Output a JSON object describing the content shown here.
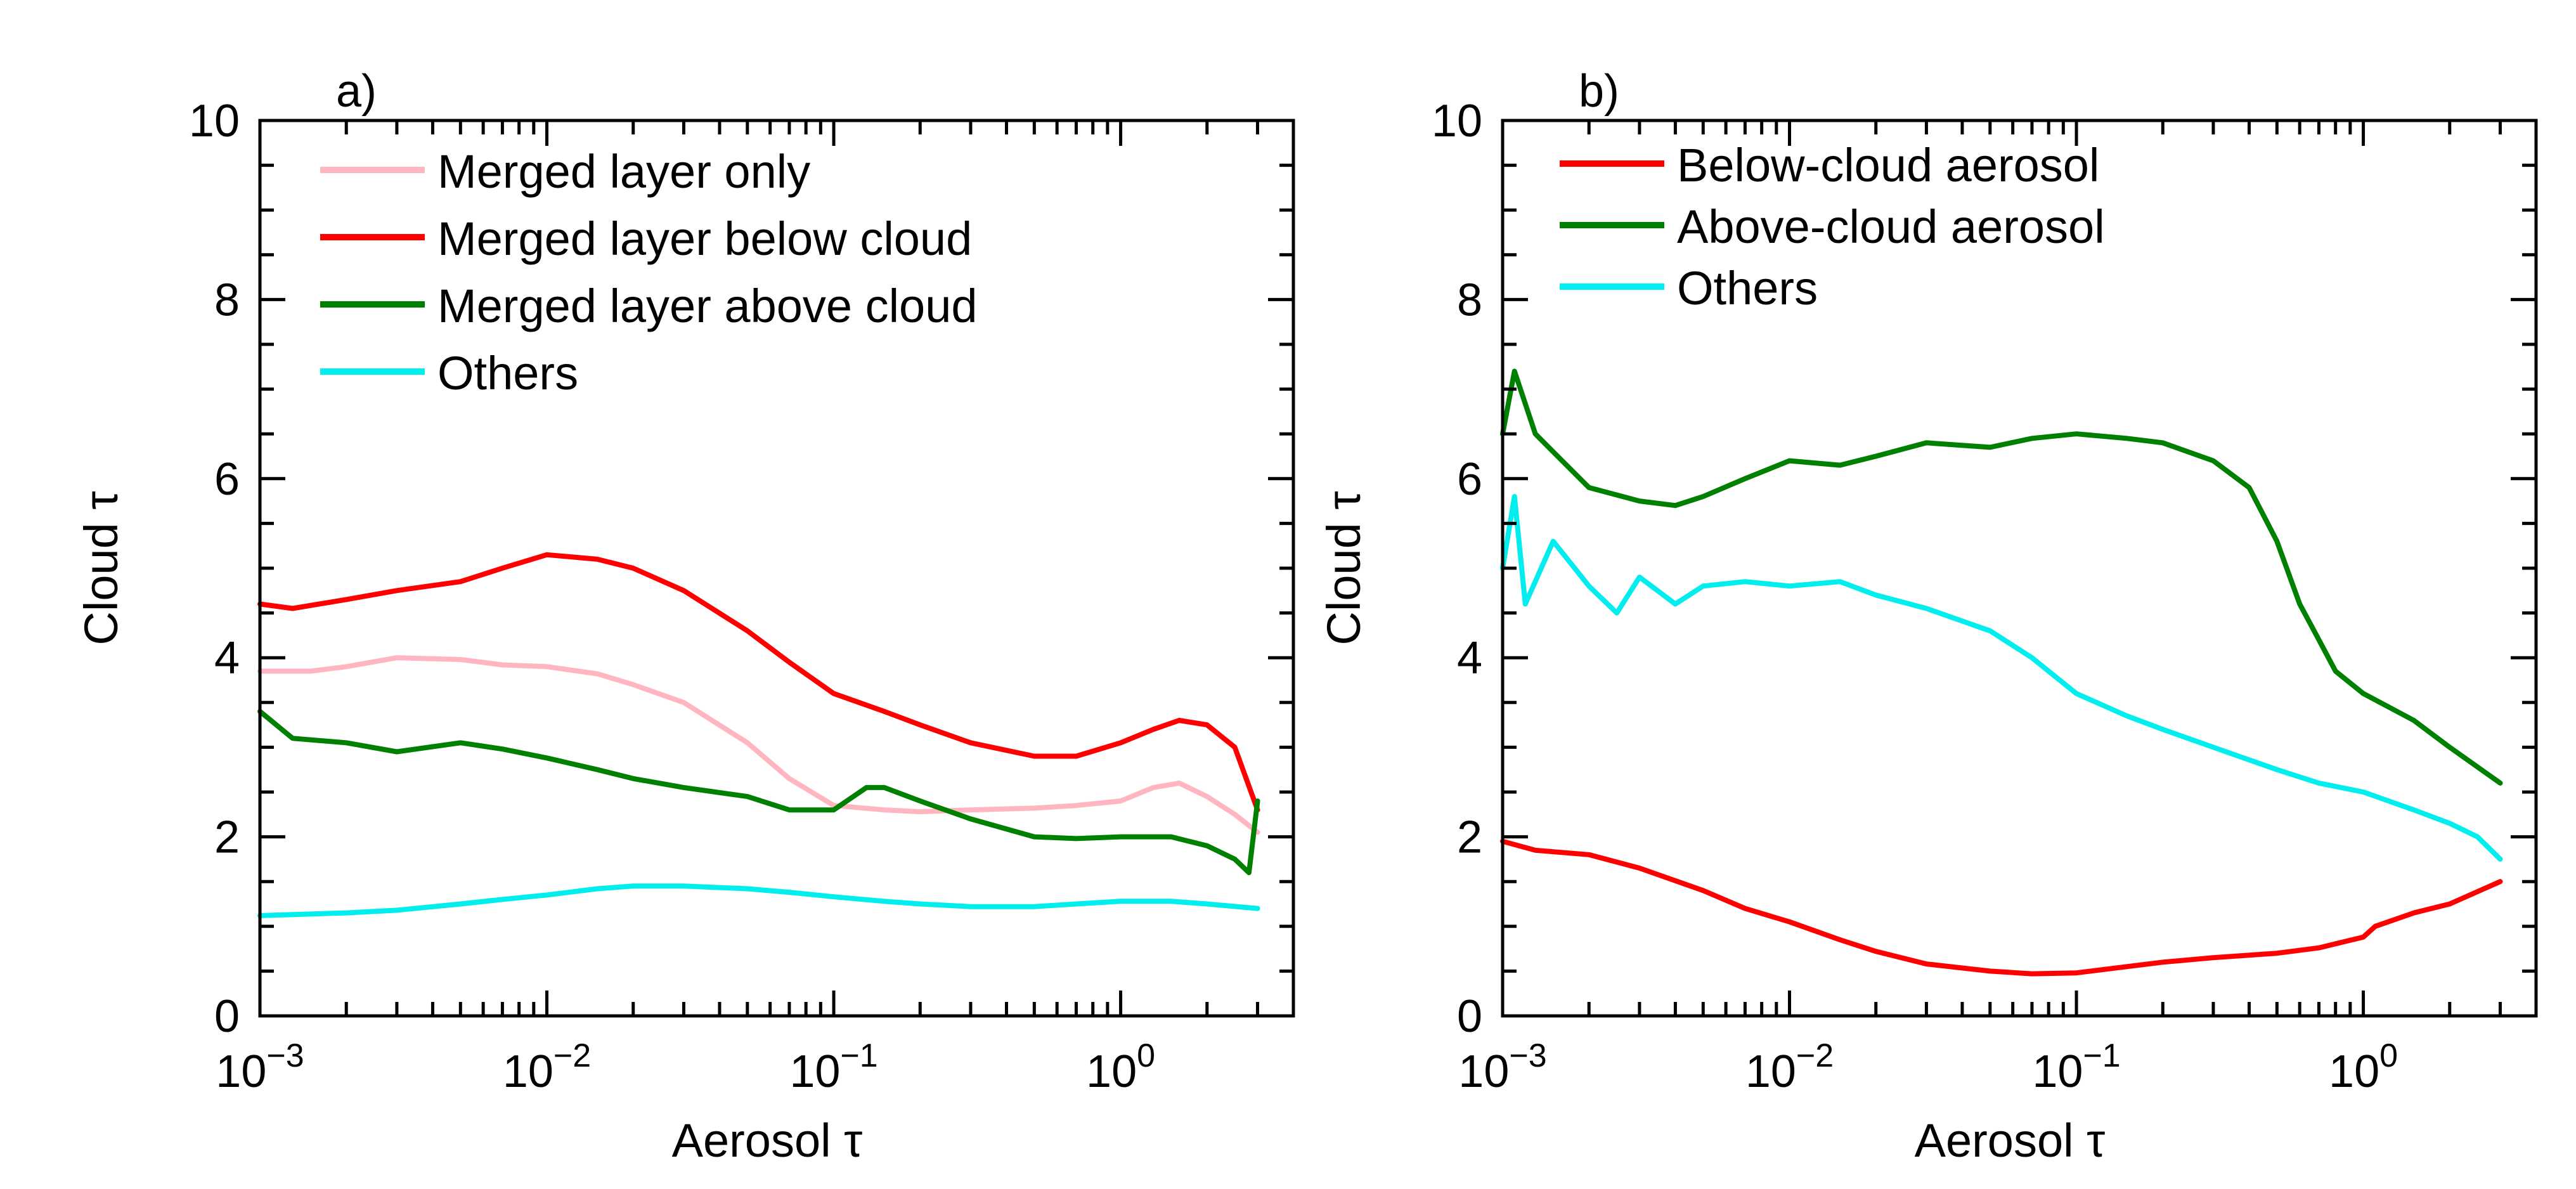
{
  "chart_data": [
    {
      "type": "line",
      "panel_label": "a)",
      "xlabel": "Aerosol τ",
      "ylabel": "Cloud τ",
      "xscale": "log",
      "xlim": [
        0.001,
        4
      ],
      "ylim": [
        0,
        10
      ],
      "xticks": [
        {
          "value": 0.001,
          "base": "10",
          "exp": "−3"
        },
        {
          "value": 0.01,
          "base": "10",
          "exp": "−2"
        },
        {
          "value": 0.1,
          "base": "10",
          "exp": "−1"
        },
        {
          "value": 1,
          "base": "10",
          "exp": "0"
        }
      ],
      "yticks": [
        {
          "value": 0,
          "label": "0"
        },
        {
          "value": 2,
          "label": "2"
        },
        {
          "value": 4,
          "label": "4"
        },
        {
          "value": 6,
          "label": "6"
        },
        {
          "value": 8,
          "label": "8"
        },
        {
          "value": 10,
          "label": "10"
        }
      ],
      "legend_position": "top-left",
      "grid": false,
      "series": [
        {
          "name": "Merged layer only",
          "color": "#ffb6c1",
          "x": [
            0.001,
            0.0015,
            0.002,
            0.003,
            0.005,
            0.007,
            0.01,
            0.015,
            0.02,
            0.03,
            0.05,
            0.07,
            0.1,
            0.15,
            0.2,
            0.3,
            0.5,
            0.7,
            1.0,
            1.3,
            1.6,
            2.0,
            2.5,
            3.0
          ],
          "y": [
            3.85,
            3.85,
            3.9,
            4.0,
            3.98,
            3.92,
            3.9,
            3.82,
            3.7,
            3.5,
            3.05,
            2.65,
            2.35,
            2.3,
            2.28,
            2.3,
            2.32,
            2.35,
            2.4,
            2.55,
            2.6,
            2.45,
            2.25,
            2.05
          ]
        },
        {
          "name": "Merged layer below cloud",
          "color": "#ff0000",
          "x": [
            0.001,
            0.0013,
            0.002,
            0.003,
            0.005,
            0.007,
            0.01,
            0.015,
            0.02,
            0.03,
            0.05,
            0.07,
            0.1,
            0.15,
            0.2,
            0.3,
            0.5,
            0.7,
            1.0,
            1.3,
            1.6,
            2.0,
            2.5,
            3.0
          ],
          "y": [
            4.6,
            4.55,
            4.65,
            4.75,
            4.85,
            5.0,
            5.15,
            5.1,
            5.0,
            4.75,
            4.3,
            3.95,
            3.6,
            3.4,
            3.25,
            3.05,
            2.9,
            2.9,
            3.05,
            3.2,
            3.3,
            3.25,
            3.0,
            2.3
          ]
        },
        {
          "name": "Merged layer above cloud",
          "color": "#008000",
          "x": [
            0.001,
            0.0013,
            0.002,
            0.003,
            0.005,
            0.007,
            0.01,
            0.015,
            0.02,
            0.03,
            0.05,
            0.07,
            0.1,
            0.13,
            0.15,
            0.2,
            0.3,
            0.5,
            0.7,
            1.0,
            1.5,
            2.0,
            2.5,
            2.8,
            3.0
          ],
          "y": [
            3.4,
            3.1,
            3.05,
            2.95,
            3.05,
            2.98,
            2.88,
            2.75,
            2.65,
            2.55,
            2.45,
            2.3,
            2.3,
            2.55,
            2.55,
            2.4,
            2.2,
            2.0,
            1.98,
            2.0,
            2.0,
            1.9,
            1.75,
            1.6,
            2.4
          ]
        },
        {
          "name": "Others",
          "color": "#00eeee",
          "x": [
            0.001,
            0.002,
            0.003,
            0.005,
            0.007,
            0.01,
            0.015,
            0.02,
            0.03,
            0.05,
            0.07,
            0.1,
            0.15,
            0.2,
            0.3,
            0.5,
            0.7,
            1.0,
            1.5,
            2.0,
            3.0
          ],
          "y": [
            1.12,
            1.15,
            1.18,
            1.25,
            1.3,
            1.35,
            1.42,
            1.45,
            1.45,
            1.42,
            1.38,
            1.33,
            1.28,
            1.25,
            1.22,
            1.22,
            1.25,
            1.28,
            1.28,
            1.25,
            1.2
          ]
        }
      ]
    },
    {
      "type": "line",
      "panel_label": "b)",
      "xlabel": "Aerosol τ",
      "ylabel": "Cloud τ",
      "xscale": "log",
      "xlim": [
        0.001,
        4
      ],
      "ylim": [
        0,
        10
      ],
      "xticks": [
        {
          "value": 0.001,
          "base": "10",
          "exp": "−3"
        },
        {
          "value": 0.01,
          "base": "10",
          "exp": "−2"
        },
        {
          "value": 0.1,
          "base": "10",
          "exp": "−1"
        },
        {
          "value": 1,
          "base": "10",
          "exp": "0"
        }
      ],
      "yticks": [
        {
          "value": 0,
          "label": "0"
        },
        {
          "value": 2,
          "label": "2"
        },
        {
          "value": 4,
          "label": "4"
        },
        {
          "value": 6,
          "label": "6"
        },
        {
          "value": 8,
          "label": "8"
        },
        {
          "value": 10,
          "label": "10"
        }
      ],
      "legend_position": "top-left",
      "grid": false,
      "series": [
        {
          "name": "Below-cloud aerosol",
          "color": "#ff0000",
          "x": [
            0.001,
            0.0013,
            0.002,
            0.003,
            0.005,
            0.007,
            0.01,
            0.015,
            0.02,
            0.03,
            0.05,
            0.07,
            0.1,
            0.15,
            0.2,
            0.3,
            0.5,
            0.7,
            1.0,
            1.1,
            1.5,
            2.0,
            3.0
          ],
          "y": [
            1.95,
            1.85,
            1.8,
            1.65,
            1.4,
            1.2,
            1.05,
            0.85,
            0.72,
            0.58,
            0.5,
            0.47,
            0.48,
            0.55,
            0.6,
            0.65,
            0.7,
            0.76,
            0.88,
            1.0,
            1.15,
            1.25,
            1.5
          ]
        },
        {
          "name": "Above-cloud aerosol",
          "color": "#008000",
          "x": [
            0.001,
            0.0011,
            0.0013,
            0.0015,
            0.002,
            0.003,
            0.004,
            0.005,
            0.007,
            0.01,
            0.015,
            0.02,
            0.03,
            0.05,
            0.07,
            0.1,
            0.15,
            0.2,
            0.3,
            0.4,
            0.5,
            0.6,
            0.7,
            0.8,
            1.0,
            1.5,
            2.0,
            3.0
          ],
          "y": [
            6.5,
            7.2,
            6.5,
            6.3,
            5.9,
            5.75,
            5.7,
            5.8,
            6.0,
            6.2,
            6.15,
            6.25,
            6.4,
            6.35,
            6.45,
            6.5,
            6.45,
            6.4,
            6.2,
            5.9,
            5.3,
            4.6,
            4.2,
            3.85,
            3.6,
            3.3,
            3.0,
            2.6
          ]
        },
        {
          "name": "Others",
          "color": "#00eeee",
          "x": [
            0.001,
            0.0011,
            0.0012,
            0.0015,
            0.002,
            0.0025,
            0.003,
            0.004,
            0.005,
            0.007,
            0.01,
            0.015,
            0.02,
            0.03,
            0.05,
            0.07,
            0.1,
            0.15,
            0.2,
            0.3,
            0.5,
            0.7,
            1.0,
            1.5,
            2.0,
            2.5,
            3.0
          ],
          "y": [
            5.0,
            5.8,
            4.6,
            5.3,
            4.8,
            4.5,
            4.9,
            4.6,
            4.8,
            4.85,
            4.8,
            4.85,
            4.7,
            4.55,
            4.3,
            4.0,
            3.6,
            3.35,
            3.2,
            3.0,
            2.75,
            2.6,
            2.5,
            2.3,
            2.15,
            2.0,
            1.75
          ]
        }
      ]
    }
  ]
}
